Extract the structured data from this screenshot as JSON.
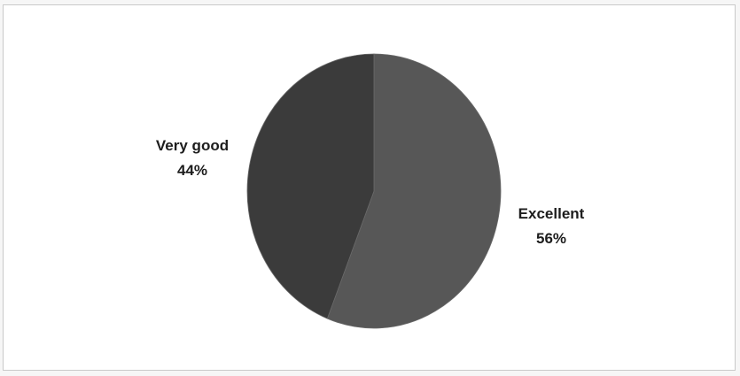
{
  "chart_data": {
    "type": "pie",
    "categories": [
      "Excellent",
      "Very good"
    ],
    "values": [
      56,
      44
    ],
    "labels": [
      {
        "category": "Excellent",
        "percent": "56%"
      },
      {
        "category": "Very good",
        "percent": "44%"
      }
    ],
    "colors": [
      "#575757",
      "#3b3b3b"
    ],
    "title": "",
    "legend": "none",
    "start_angle_deg": 0,
    "direction": "clockwise"
  }
}
